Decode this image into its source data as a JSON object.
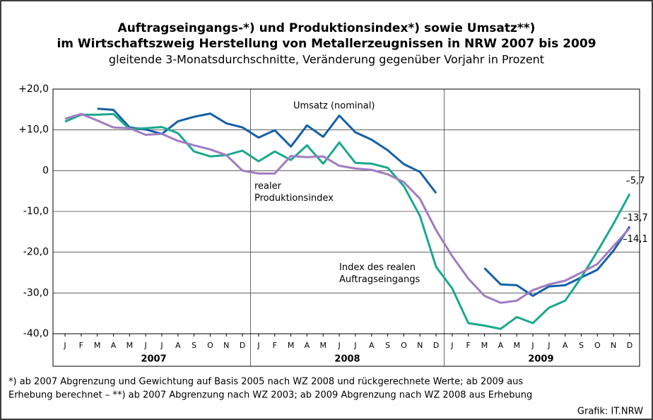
{
  "chart_data": {
    "type": "line",
    "title_lines": [
      "Auftragseingangs-*) und Produktionsindex*) sowie Umsatz**)",
      "im Wirtschaftszweig Herstellung von Metallerzeugnissen in NRW 2007 bis 2009"
    ],
    "subtitle": "gleitende 3-Monatsdurchschnitte, Veränderung gegenüber Vorjahr in Prozent",
    "categories": [
      "J",
      "F",
      "M",
      "A",
      "M",
      "J",
      "J",
      "A",
      "S",
      "O",
      "N",
      "D",
      "J",
      "F",
      "M",
      "A",
      "M",
      "J",
      "J",
      "A",
      "S",
      "O",
      "N",
      "D",
      "J",
      "F",
      "M",
      "A",
      "M",
      "J",
      "J",
      "A",
      "S",
      "O",
      "N",
      "D"
    ],
    "years": [
      "2007",
      "2008",
      "2009"
    ],
    "ylim": [
      -40,
      20
    ],
    "yticks": [
      {
        "value": 20,
        "label": "+20,0"
      },
      {
        "value": 10,
        "label": "+10,0"
      },
      0,
      {
        "value": -10,
        "label": "-10,0"
      },
      {
        "value": -20,
        "label": "-20,0"
      },
      {
        "value": -30,
        "label": "-30,0"
      },
      {
        "value": -40,
        "label": "-40,0"
      }
    ],
    "grid": true,
    "series": [
      {
        "name": "Umsatz (nominal)",
        "color": "#1560a8",
        "end_label": "–13,7",
        "values": [
          null,
          null,
          15.2,
          14.9,
          10.6,
          10.1,
          9.0,
          12.1,
          13.2,
          14.0,
          11.6,
          10.6,
          8.1,
          9.9,
          5.9,
          11.1,
          8.3,
          13.5,
          9.4,
          7.6,
          5.0,
          1.6,
          -0.3,
          -5.5,
          null,
          null,
          -23.9,
          -27.9,
          -28.1,
          -30.7,
          -28.4,
          -28.1,
          -26.2,
          -24.3,
          -19.6,
          -13.7
        ]
      },
      {
        "name": "Index des realen Auftragseingangs",
        "color": "#1aa88e",
        "end_label": "–5,7",
        "values": [
          12.0,
          13.7,
          13.7,
          13.9,
          10.2,
          10.4,
          10.7,
          9.2,
          4.7,
          3.5,
          3.8,
          4.9,
          2.3,
          4.7,
          2.6,
          6.2,
          1.7,
          6.9,
          1.9,
          1.7,
          0.7,
          -3.8,
          -11.1,
          -23.6,
          -28.9,
          -37.4,
          -38.0,
          -38.8,
          -35.9,
          -37.4,
          -33.6,
          -31.9,
          -26.2,
          -19.8,
          -13.0,
          -5.7
        ]
      },
      {
        "name": "realer Produktionsindex",
        "color": "#a07cc0",
        "end_label": "–14,1",
        "values": [
          12.7,
          13.9,
          12.3,
          10.6,
          10.4,
          8.8,
          9.0,
          7.3,
          6.2,
          5.2,
          3.8,
          0.0,
          -0.7,
          -0.7,
          3.6,
          3.3,
          3.5,
          1.2,
          0.5,
          0.2,
          -0.9,
          -2.8,
          -6.9,
          -14.6,
          -21.0,
          -26.5,
          -30.7,
          -32.4,
          -31.9,
          -29.3,
          -27.9,
          -27.0,
          -25.0,
          -22.9,
          -18.5,
          -14.1
        ]
      }
    ],
    "footnote_lines": [
      "*) ab 2007 Abgrenzung und Gewichtung auf Basis 2005 nach WZ 2008 und rückgerechnete Werte; ab 2009 aus",
      "Erhebung berechnet – **) ab 2007 Abgrenzung nach WZ 2003; ab 2009 Abgrenzung nach WZ 2008 aus Erhebung"
    ],
    "source": "Grafik: IT.NRW"
  }
}
